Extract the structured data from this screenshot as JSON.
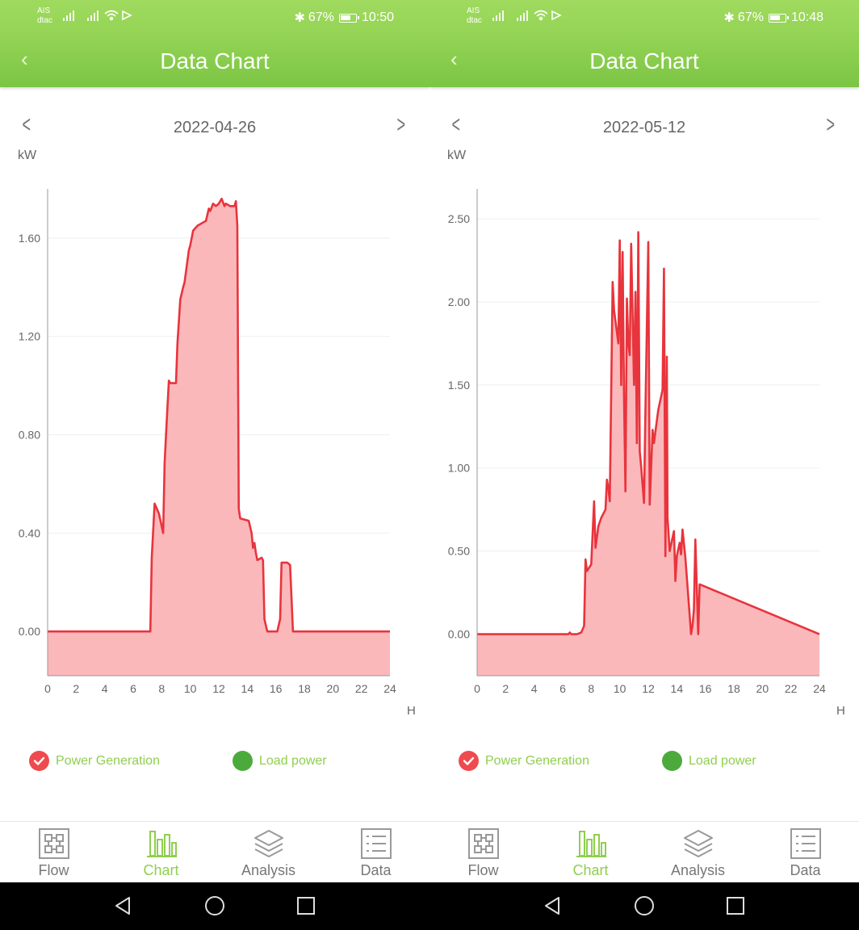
{
  "screens": [
    {
      "status": {
        "carrier_top": "AIS",
        "carrier_bottom": "dtac",
        "battery": "67%",
        "time": "10:50"
      },
      "title": "Data Chart",
      "date": "2022-04-26",
      "unit": "kW",
      "x_unit": "H",
      "legend": {
        "generation": "Power Generation",
        "load": "Load power"
      },
      "nav": [
        "Flow",
        "Chart",
        "Analysis",
        "Data"
      ]
    },
    {
      "status": {
        "carrier_top": "AIS",
        "carrier_bottom": "dtac",
        "battery": "67%",
        "time": "10:48"
      },
      "title": "Data Chart",
      "date": "2022-05-12",
      "unit": "kW",
      "x_unit": "H",
      "legend": {
        "generation": "Power Generation",
        "load": "Load power"
      },
      "nav": [
        "Flow",
        "Chart",
        "Analysis",
        "Data"
      ]
    }
  ],
  "colors": {
    "accent": "#8fcf4e",
    "series_line": "#e8343c",
    "series_fill": "#fbb8bb",
    "load_dot": "#4caa3c"
  },
  "chart_data": [
    {
      "type": "area",
      "date": "2022-04-26",
      "xlabel": "H",
      "ylabel": "kW",
      "xlim": [
        0,
        24
      ],
      "ylim": [
        -0.18,
        1.8
      ],
      "xticks": [
        0,
        2,
        4,
        6,
        8,
        10,
        12,
        14,
        16,
        18,
        20,
        22,
        24
      ],
      "yticks": [
        0,
        0.4,
        0.8,
        1.2,
        1.6
      ],
      "ytick_labels": [
        "0.00",
        "0.40",
        "0.80",
        "1.20",
        "1.60"
      ],
      "series": [
        {
          "name": "Power Generation",
          "x": [
            0,
            7.2,
            7.3,
            7.5,
            7.8,
            8.1,
            8.2,
            8.3,
            8.5,
            8.6,
            9.0,
            9.1,
            9.3,
            9.5,
            9.6,
            9.9,
            10.0,
            10.2,
            10.5,
            10.8,
            11.1,
            11.3,
            11.4,
            11.6,
            11.8,
            12.0,
            12.2,
            12.4,
            12.5,
            12.8,
            13.1,
            13.2,
            13.3,
            13.4,
            13.5,
            14.1,
            14.3,
            14.4,
            14.5,
            14.6,
            14.7,
            15.0,
            15.1,
            15.2,
            15.4,
            16.1,
            16.3,
            16.4,
            16.8,
            17.0,
            17.2,
            24
          ],
          "y": [
            0,
            0,
            0.3,
            0.52,
            0.48,
            0.4,
            0.68,
            0.8,
            1.02,
            1.01,
            1.01,
            1.17,
            1.35,
            1.4,
            1.42,
            1.55,
            1.57,
            1.63,
            1.65,
            1.66,
            1.67,
            1.72,
            1.71,
            1.74,
            1.73,
            1.74,
            1.76,
            1.73,
            1.74,
            1.73,
            1.73,
            1.75,
            1.65,
            0.5,
            0.46,
            0.45,
            0.4,
            0.34,
            0.36,
            0.32,
            0.29,
            0.3,
            0.29,
            0.05,
            0,
            0,
            0.05,
            0.28,
            0.28,
            0.27,
            0,
            0
          ]
        }
      ]
    },
    {
      "type": "area",
      "date": "2022-05-12",
      "xlabel": "H",
      "ylabel": "kW",
      "xlim": [
        0,
        24
      ],
      "ylim": [
        -0.25,
        2.68
      ],
      "xticks": [
        0,
        2,
        4,
        6,
        8,
        10,
        12,
        14,
        16,
        18,
        20,
        22,
        24
      ],
      "yticks": [
        0,
        0.5,
        1.0,
        1.5,
        2.0,
        2.5
      ],
      "ytick_labels": [
        "0.00",
        "0.50",
        "1.00",
        "1.50",
        "2.00",
        "2.50"
      ],
      "series": [
        {
          "name": "Power Generation",
          "x": [
            0,
            6.4,
            6.5,
            6.6,
            7.0,
            7.3,
            7.5,
            7.6,
            7.7,
            8.0,
            8.2,
            8.3,
            8.5,
            8.7,
            9.0,
            9.1,
            9.2,
            9.3,
            9.5,
            9.6,
            9.9,
            10.0,
            10.1,
            10.2,
            10.3,
            10.4,
            10.5,
            10.6,
            10.7,
            10.8,
            11.0,
            11.1,
            11.2,
            11.3,
            11.4,
            11.5,
            11.7,
            11.8,
            12.0,
            12.1,
            12.3,
            12.4,
            12.5,
            12.7,
            13.0,
            13.1,
            13.2,
            13.3,
            13.35,
            13.5,
            13.8,
            13.9,
            14.0,
            14.2,
            14.3,
            14.4,
            14.6,
            15.0,
            15.1,
            15.2,
            15.3,
            15.5,
            15.6,
            24
          ],
          "y": [
            0,
            0,
            0.01,
            0,
            0,
            0.01,
            0.05,
            0.45,
            0.38,
            0.42,
            0.8,
            0.52,
            0.65,
            0.7,
            0.75,
            0.93,
            0.88,
            0.8,
            2.12,
            1.95,
            1.75,
            2.37,
            1.5,
            2.3,
            1.42,
            0.86,
            2.02,
            1.75,
            1.68,
            2.35,
            1.5,
            2.06,
            1.15,
            2.42,
            1.1,
            1.01,
            0.79,
            1.35,
            2.36,
            0.78,
            1.23,
            1.15,
            1.22,
            1.35,
            1.47,
            2.2,
            0.47,
            1.67,
            0.7,
            0.5,
            0.62,
            0.32,
            0.47,
            0.55,
            0.48,
            0.63,
            0.46,
            0,
            0.05,
            0.15,
            0.57,
            0,
            0.3,
            0
          ]
        }
      ]
    }
  ]
}
